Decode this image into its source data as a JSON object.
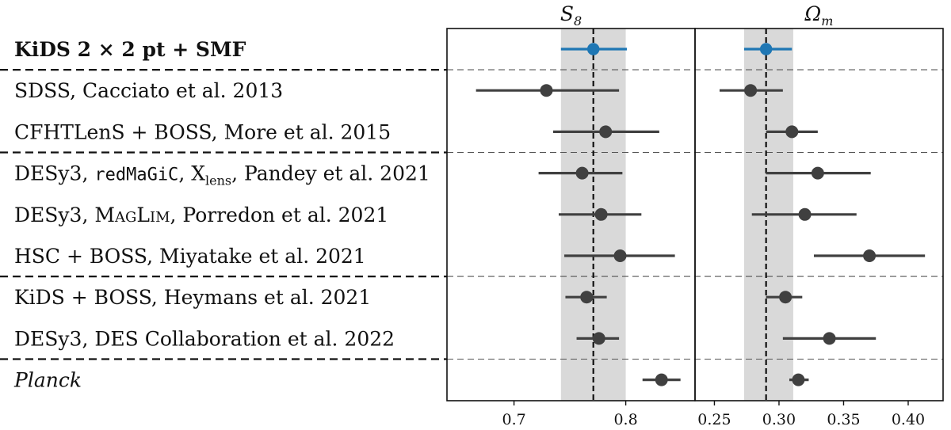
{
  "chart_data": {
    "type": "scatter",
    "title": "",
    "panels": [
      {
        "name": "S8",
        "title_main": "S",
        "title_sub": "8",
        "xlim": [
          0.64,
          0.862
        ],
        "ticks": [
          0.7,
          0.8
        ],
        "tick_labels": [
          "0.7",
          "0.8"
        ],
        "band": [
          0.742,
          0.8
        ],
        "reference": 0.771
      },
      {
        "name": "Omega_m",
        "title_main": "Ω",
        "title_sub": "m",
        "xlim": [
          0.235,
          0.427
        ],
        "ticks": [
          0.25,
          0.3,
          0.35,
          0.4
        ],
        "tick_labels": [
          "0.25",
          "0.30",
          "0.35",
          "0.40"
        ],
        "band": [
          0.273,
          0.311
        ],
        "reference": 0.29
      }
    ],
    "rows": [
      {
        "label": "KiDS 2 × 2 pt + SMF",
        "style": "bold",
        "color": "#1f77b4",
        "open_marker": true,
        "s8": {
          "value": 0.771,
          "lo": 0.742,
          "hi": 0.801
        },
        "om": {
          "value": 0.29,
          "lo": 0.273,
          "hi": 0.31
        }
      },
      {
        "label": "SDSS, Cacciato et al. 2013",
        "style": "normal",
        "color": "#404040",
        "open_marker": false,
        "s8": {
          "value": 0.729,
          "lo": 0.666,
          "hi": 0.794
        },
        "om": {
          "value": 0.278,
          "lo": 0.254,
          "hi": 0.303
        }
      },
      {
        "label": "CFHTLenS + BOSS, More et al. 2015",
        "style": "normal",
        "color": "#404040",
        "open_marker": false,
        "s8": {
          "value": 0.782,
          "lo": 0.735,
          "hi": 0.83
        },
        "om": {
          "value": 0.31,
          "lo": 0.29,
          "hi": 0.33
        }
      },
      {
        "label": "DESy3, redMaGiC, X_lens, Pandey et al. 2021",
        "style": "mixed",
        "color": "#404040",
        "open_marker": false,
        "s8": {
          "value": 0.761,
          "lo": 0.722,
          "hi": 0.797
        },
        "om": {
          "value": 0.33,
          "lo": 0.29,
          "hi": 0.371
        }
      },
      {
        "label": "DESy3, MagLim, Porredon et al. 2021",
        "style": "smallcaps",
        "color": "#404040",
        "open_marker": false,
        "s8": {
          "value": 0.778,
          "lo": 0.74,
          "hi": 0.814
        },
        "om": {
          "value": 0.32,
          "lo": 0.279,
          "hi": 0.36
        }
      },
      {
        "label": "HSC + BOSS, Miyatake et al. 2021",
        "style": "normal",
        "color": "#404040",
        "open_marker": false,
        "s8": {
          "value": 0.795,
          "lo": 0.745,
          "hi": 0.844
        },
        "om": {
          "value": 0.37,
          "lo": 0.327,
          "hi": 0.413
        }
      },
      {
        "label": "KiDS + BOSS, Heymans et al. 2021",
        "style": "normal",
        "color": "#404040",
        "open_marker": false,
        "s8": {
          "value": 0.765,
          "lo": 0.746,
          "hi": 0.783
        },
        "om": {
          "value": 0.305,
          "lo": 0.29,
          "hi": 0.318
        }
      },
      {
        "label": "DESy3, DES Collaboration et al. 2022",
        "style": "normal",
        "color": "#404040",
        "open_marker": false,
        "s8": {
          "value": 0.776,
          "lo": 0.756,
          "hi": 0.794
        },
        "om": {
          "value": 0.339,
          "lo": 0.303,
          "hi": 0.375
        }
      },
      {
        "label": "Planck",
        "style": "italic",
        "color": "#404040",
        "open_marker": false,
        "s8": {
          "value": 0.832,
          "lo": 0.815,
          "hi": 0.849
        },
        "om": {
          "value": 0.315,
          "lo": 0.308,
          "hi": 0.323
        }
      }
    ],
    "label_parts": {
      "kids_pre": "KiDS 2 × 2 pt + SMF",
      "desy3_a": "DESy3, ",
      "redmagic": "redMaGiC",
      "x": ", X",
      "lens": "lens",
      "pandey": ", Pandey et al. 2021",
      "maglim_pre": "DESy3, ",
      "maglim_M": "M",
      "maglim_ag": "AG",
      "maglim_L": "L",
      "maglim_im": "IM",
      "maglim_post": ", Porredon et al. 2021"
    },
    "group_separators_after_rows": [
      0,
      2,
      5,
      7
    ],
    "grid": false,
    "legend": "none"
  }
}
